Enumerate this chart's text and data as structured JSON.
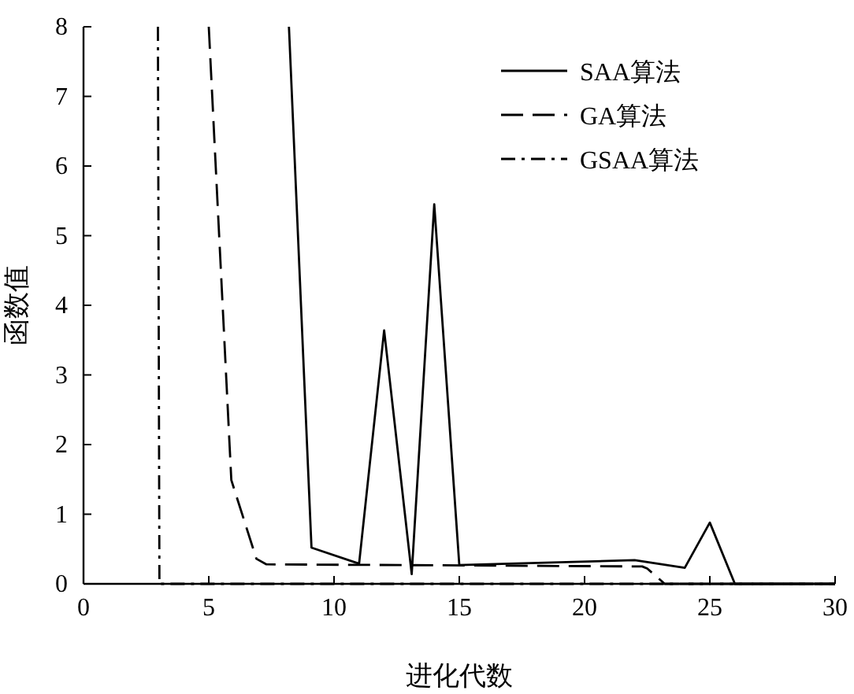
{
  "chart_data": {
    "type": "line",
    "xlabel": "进化代数",
    "ylabel": "函数值",
    "xlim": [
      0,
      30
    ],
    "ylim": [
      0,
      8
    ],
    "xticks": [
      0,
      5,
      10,
      15,
      20,
      25,
      30
    ],
    "yticks": [
      0,
      1,
      2,
      3,
      4,
      5,
      6,
      7,
      8
    ],
    "legend": "top right",
    "grid": false,
    "marker": "none",
    "series": [
      {
        "name": "SAA算法",
        "color": "#000000",
        "line_style": "solid",
        "x": [
          8.2,
          9.1,
          11,
          12,
          13.1,
          14,
          15,
          22,
          24,
          25,
          26,
          30
        ],
        "values": [
          8,
          0.52,
          0.29,
          3.64,
          0.14,
          5.45,
          0.27,
          0.34,
          0.23,
          0.88,
          0,
          0
        ]
      },
      {
        "name": "GA算法",
        "color": "#000000",
        "line_style": "dashed",
        "x": [
          5.0,
          5.9,
          6.9,
          7.3,
          22.3,
          22.5,
          23.2,
          30
        ],
        "values": [
          8,
          1.49,
          0.36,
          0.28,
          0.25,
          0.22,
          0,
          0
        ]
      },
      {
        "name": "GSAA算法",
        "color": "#000000",
        "line_style": "dashdot",
        "x": [
          2.97,
          3.03,
          30
        ],
        "values": [
          8,
          0,
          0
        ]
      }
    ]
  }
}
